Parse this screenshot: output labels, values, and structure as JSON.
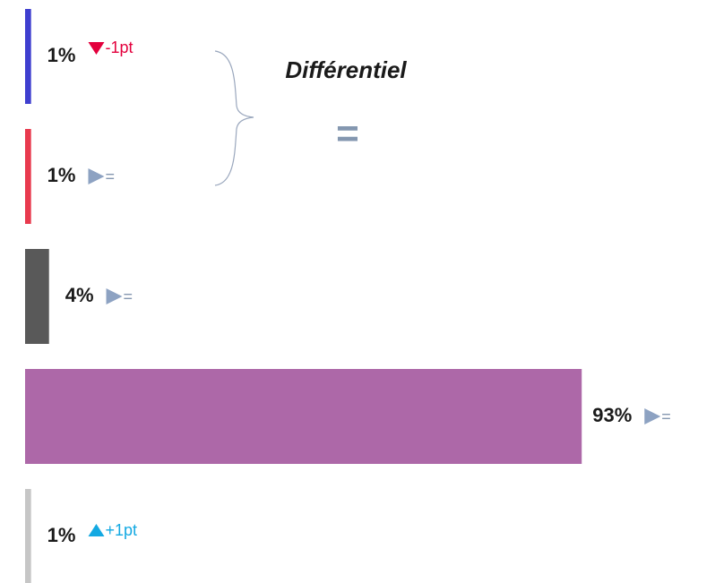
{
  "chart_data": {
    "type": "bar",
    "orientation": "horizontal",
    "values": [
      1,
      1,
      4,
      93,
      1
    ],
    "value_labels": [
      "1%",
      "1%",
      "4%",
      "93%",
      "1%"
    ],
    "colors": [
      "#3f3fcf",
      "#e83a4e",
      "#595959",
      "#ad68a8",
      "#c6c6c6"
    ],
    "deltas": [
      -1,
      0,
      0,
      0,
      1
    ],
    "delta_labels": [
      "-1pt",
      "=",
      "=",
      "=",
      "+1pt"
    ],
    "delta_colors": {
      "down": "#e3003d",
      "flat": "#8497b0",
      "up": "#14a9e2"
    },
    "annotations": [
      "Différentiel",
      "="
    ]
  }
}
